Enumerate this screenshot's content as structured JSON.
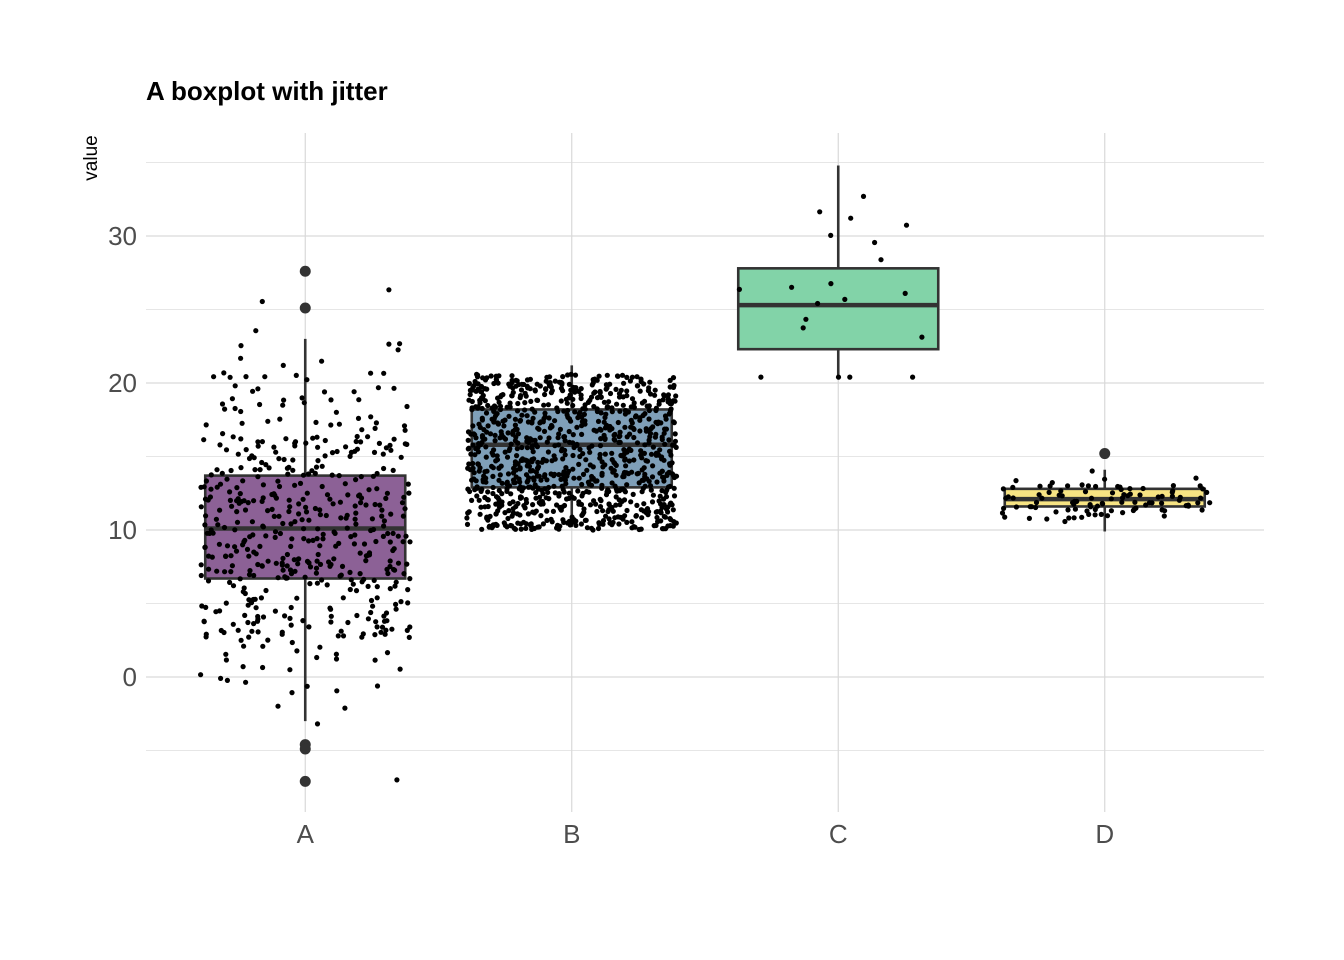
{
  "chart_data": {
    "type": "boxplot",
    "title": "A boxplot with jitter",
    "xlabel": "",
    "ylabel": "value",
    "categories": [
      "A",
      "B",
      "C",
      "D"
    ],
    "y_ticks": [
      0,
      10,
      20,
      30
    ],
    "ylim": [
      -9,
      36
    ],
    "grid": true,
    "legend": "none",
    "jitter_points": true,
    "groups": [
      {
        "name": "A",
        "color": "#8c6196",
        "n_points": 500,
        "min": -3,
        "q1": 6.7,
        "median": 10.1,
        "q3": 13.7,
        "max": 23,
        "outliers": [
          27.6,
          25.1,
          -4.6,
          -4.9,
          -7.1
        ],
        "point_range": [
          -7,
          28
        ]
      },
      {
        "name": "B",
        "color": "#7f9fb8",
        "n_points": 1000,
        "min": 10.2,
        "q1": 12.9,
        "median": 15.8,
        "q3": 18.2,
        "max": 21.2,
        "outliers": [],
        "point_range": [
          10,
          21.2
        ]
      },
      {
        "name": "C",
        "color": "#82d3a8",
        "n_points": 20,
        "min": 20.5,
        "q1": 22.3,
        "median": 25.3,
        "q3": 27.8,
        "max": 34.8,
        "outliers": [],
        "point_range": [
          20.4,
          34.9
        ]
      },
      {
        "name": "D",
        "color": "#f7e483",
        "n_points": 100,
        "min": 9.9,
        "q1": 11.6,
        "median": 12.1,
        "q3": 12.8,
        "max": 14.1,
        "outliers": [
          15.2
        ],
        "point_range": [
          9.9,
          15.2
        ]
      }
    ]
  }
}
